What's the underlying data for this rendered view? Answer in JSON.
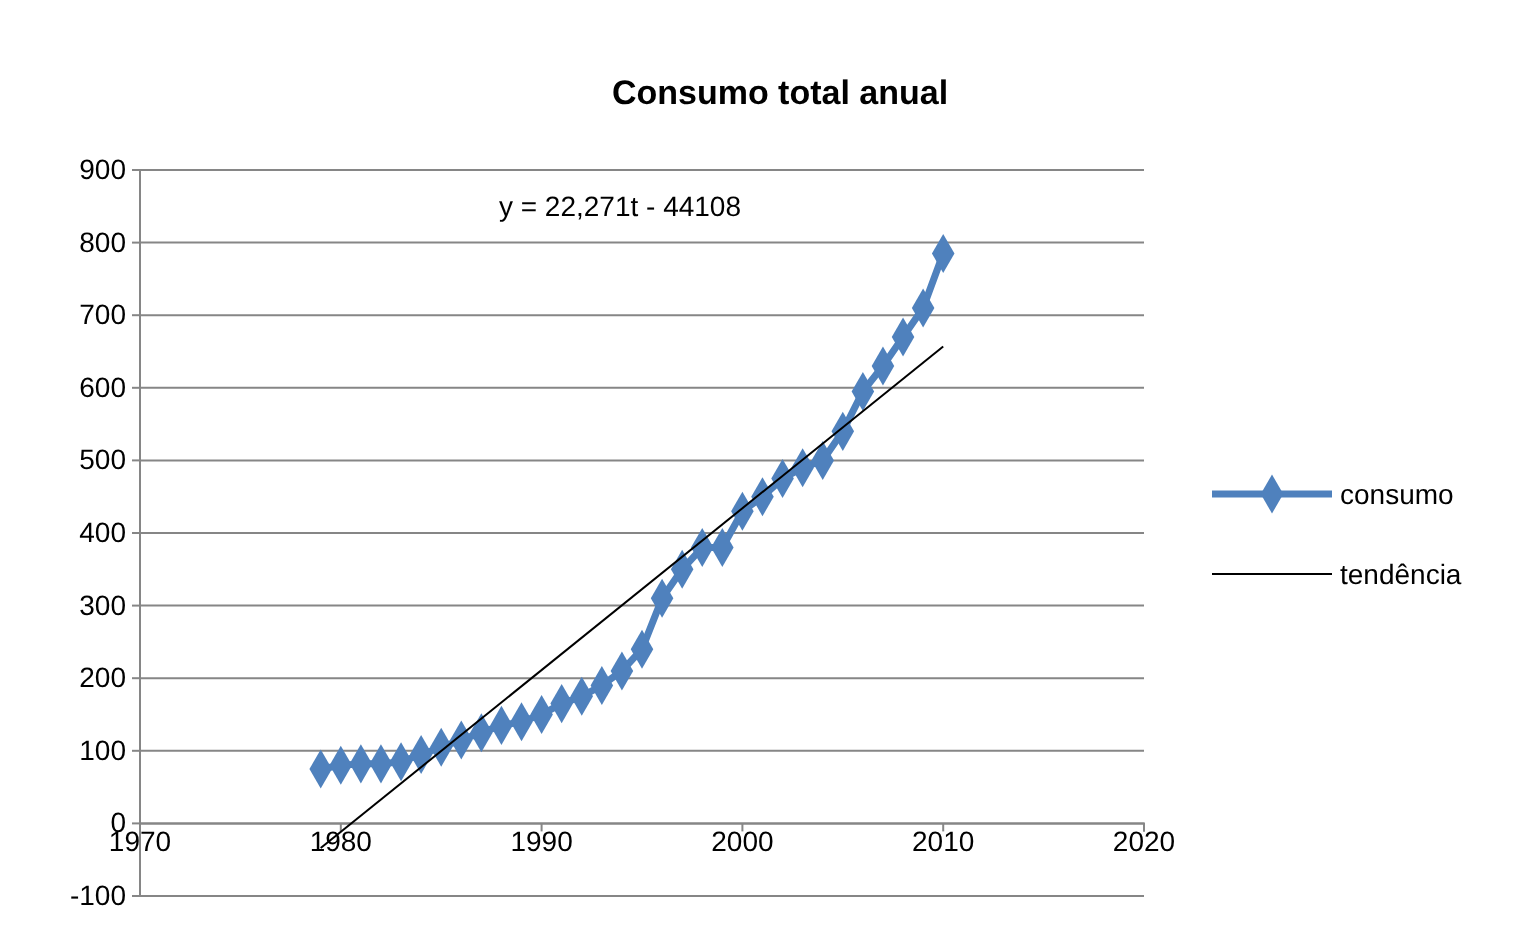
{
  "chart_data": {
    "type": "line",
    "title": "Consumo total anual",
    "annotations": [
      "y = 22,271t - 44108"
    ],
    "xlim": [
      1970,
      2020
    ],
    "xticks": [
      1970,
      1980,
      1990,
      2000,
      2010,
      2020
    ],
    "ylim": [
      -100,
      900
    ],
    "yticks": [
      -100,
      0,
      100,
      200,
      300,
      400,
      500,
      600,
      700,
      800,
      900
    ],
    "grid": "y",
    "legend": "right",
    "series": [
      {
        "name": "consumo",
        "color": "#4f81bd",
        "marker": "diamond",
        "x": [
          1979,
          1980,
          1981,
          1982,
          1983,
          1984,
          1985,
          1986,
          1987,
          1988,
          1989,
          1990,
          1991,
          1992,
          1993,
          1994,
          1995,
          1996,
          1997,
          1998,
          1999,
          2000,
          2001,
          2002,
          2003,
          2004,
          2005,
          2006,
          2007,
          2008,
          2009,
          2010
        ],
        "values": [
          75,
          80,
          82,
          82,
          85,
          95,
          105,
          115,
          125,
          135,
          140,
          150,
          165,
          175,
          190,
          210,
          240,
          310,
          350,
          380,
          380,
          430,
          450,
          475,
          490,
          500,
          540,
          595,
          630,
          670,
          710,
          785
        ]
      },
      {
        "name": "tendência",
        "color": "#000000",
        "marker": "none",
        "x": [
          1979,
          2010
        ],
        "values": [
          -34,
          657
        ]
      }
    ]
  }
}
